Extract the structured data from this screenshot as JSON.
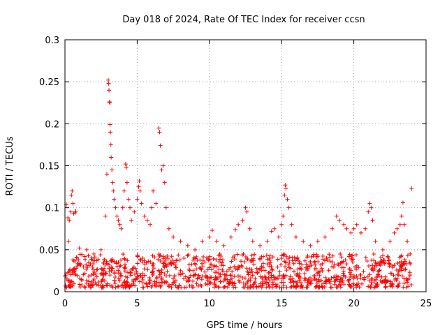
{
  "chart_data": {
    "type": "scatter",
    "title": "Day 018 of 2024, Rate Of TEC Index for receiver ccsn",
    "xlabel": "GPS time / hours",
    "ylabel": "ROTI / TECUs",
    "xlim": [
      0,
      25
    ],
    "ylim": [
      0,
      0.3
    ],
    "x_ticks": [
      "0",
      "5",
      "10",
      "15",
      "20",
      "25"
    ],
    "y_ticks": [
      "0",
      "0.05",
      "0.1",
      "0.15",
      "0.2",
      "0.25",
      "0.3"
    ],
    "grid": true,
    "marker": "+",
    "marker_color": "#ff0000",
    "series": [
      {
        "points": [
          [
            0.1,
            0.104
          ],
          [
            0.2,
            0.088
          ],
          [
            0.25,
            0.06
          ],
          [
            0.3,
            0.085
          ],
          [
            0.4,
            0.095
          ],
          [
            0.45,
            0.115
          ],
          [
            0.5,
            0.12
          ],
          [
            0.55,
            0.105
          ],
          [
            0.6,
            0.093
          ],
          [
            0.7,
            0.094
          ],
          [
            0.75,
            0.096
          ],
          [
            1.0,
            0.052
          ],
          [
            1.5,
            0.05
          ],
          [
            2.0,
            0.045
          ],
          [
            2.5,
            0.05
          ],
          [
            2.8,
            0.09
          ],
          [
            2.9,
            0.14
          ],
          [
            3.0,
            0.252
          ],
          [
            3.02,
            0.248
          ],
          [
            3.05,
            0.24
          ],
          [
            3.08,
            0.226
          ],
          [
            3.1,
            0.225
          ],
          [
            3.12,
            0.199
          ],
          [
            3.15,
            0.19
          ],
          [
            3.18,
            0.175
          ],
          [
            3.2,
            0.16
          ],
          [
            3.25,
            0.145
          ],
          [
            3.3,
            0.13
          ],
          [
            3.35,
            0.12
          ],
          [
            3.4,
            0.11
          ],
          [
            3.5,
            0.1
          ],
          [
            3.6,
            0.09
          ],
          [
            3.7,
            0.085
          ],
          [
            3.8,
            0.08
          ],
          [
            3.9,
            0.075
          ],
          [
            4.0,
            0.1
          ],
          [
            4.1,
            0.12
          ],
          [
            4.2,
            0.152
          ],
          [
            4.25,
            0.148
          ],
          [
            4.3,
            0.13
          ],
          [
            4.4,
            0.11
          ],
          [
            4.5,
            0.1
          ],
          [
            4.6,
            0.085
          ],
          [
            4.8,
            0.095
          ],
          [
            5.0,
            0.11
          ],
          [
            5.1,
            0.125
          ],
          [
            5.15,
            0.132
          ],
          [
            5.2,
            0.12
          ],
          [
            5.3,
            0.105
          ],
          [
            5.5,
            0.09
          ],
          [
            5.7,
            0.085
          ],
          [
            5.9,
            0.08
          ],
          [
            6.0,
            0.1
          ],
          [
            6.1,
            0.12
          ],
          [
            6.3,
            0.105
          ],
          [
            6.5,
            0.195
          ],
          [
            6.55,
            0.19
          ],
          [
            6.6,
            0.174
          ],
          [
            6.7,
            0.145
          ],
          [
            6.8,
            0.15
          ],
          [
            6.9,
            0.13
          ],
          [
            7.0,
            0.1
          ],
          [
            7.2,
            0.075
          ],
          [
            7.5,
            0.065
          ],
          [
            8.0,
            0.06
          ],
          [
            8.5,
            0.055
          ],
          [
            9.0,
            0.05
          ],
          [
            9.5,
            0.06
          ],
          [
            10.0,
            0.065
          ],
          [
            10.2,
            0.073
          ],
          [
            10.5,
            0.06
          ],
          [
            11.0,
            0.055
          ],
          [
            11.5,
            0.065
          ],
          [
            11.8,
            0.074
          ],
          [
            12.0,
            0.08
          ],
          [
            12.3,
            0.085
          ],
          [
            12.5,
            0.1
          ],
          [
            12.6,
            0.095
          ],
          [
            12.8,
            0.075
          ],
          [
            13.0,
            0.06
          ],
          [
            13.5,
            0.055
          ],
          [
            14.0,
            0.06
          ],
          [
            14.3,
            0.072
          ],
          [
            14.5,
            0.075
          ],
          [
            14.8,
            0.065
          ],
          [
            15.0,
            0.08
          ],
          [
            15.1,
            0.09
          ],
          [
            15.2,
            0.115
          ],
          [
            15.25,
            0.127
          ],
          [
            15.3,
            0.123
          ],
          [
            15.4,
            0.11
          ],
          [
            15.5,
            0.1
          ],
          [
            15.7,
            0.08
          ],
          [
            16.0,
            0.065
          ],
          [
            16.5,
            0.06
          ],
          [
            17.0,
            0.055
          ],
          [
            17.5,
            0.06
          ],
          [
            18.0,
            0.065
          ],
          [
            18.5,
            0.075
          ],
          [
            18.8,
            0.09
          ],
          [
            19.0,
            0.085
          ],
          [
            19.3,
            0.08
          ],
          [
            19.5,
            0.075
          ],
          [
            19.8,
            0.07
          ],
          [
            20.0,
            0.075
          ],
          [
            20.2,
            0.08
          ],
          [
            20.5,
            0.07
          ],
          [
            20.8,
            0.075
          ],
          [
            21.0,
            0.095
          ],
          [
            21.1,
            0.105
          ],
          [
            21.2,
            0.1
          ],
          [
            21.3,
            0.085
          ],
          [
            21.5,
            0.06
          ],
          [
            22.0,
            0.05
          ],
          [
            22.5,
            0.06
          ],
          [
            22.8,
            0.07
          ],
          [
            23.0,
            0.075
          ],
          [
            23.2,
            0.08
          ],
          [
            23.3,
            0.09
          ],
          [
            23.4,
            0.106
          ],
          [
            23.5,
            0.08
          ],
          [
            23.7,
            0.06
          ],
          [
            23.9,
            0.045
          ],
          [
            24.0,
            0.123
          ]
        ],
        "baseline_band": {
          "x_range": [
            0,
            24
          ],
          "y_range": [
            0.005,
            0.045
          ],
          "description_points_per_hour": 45
        }
      }
    ]
  }
}
